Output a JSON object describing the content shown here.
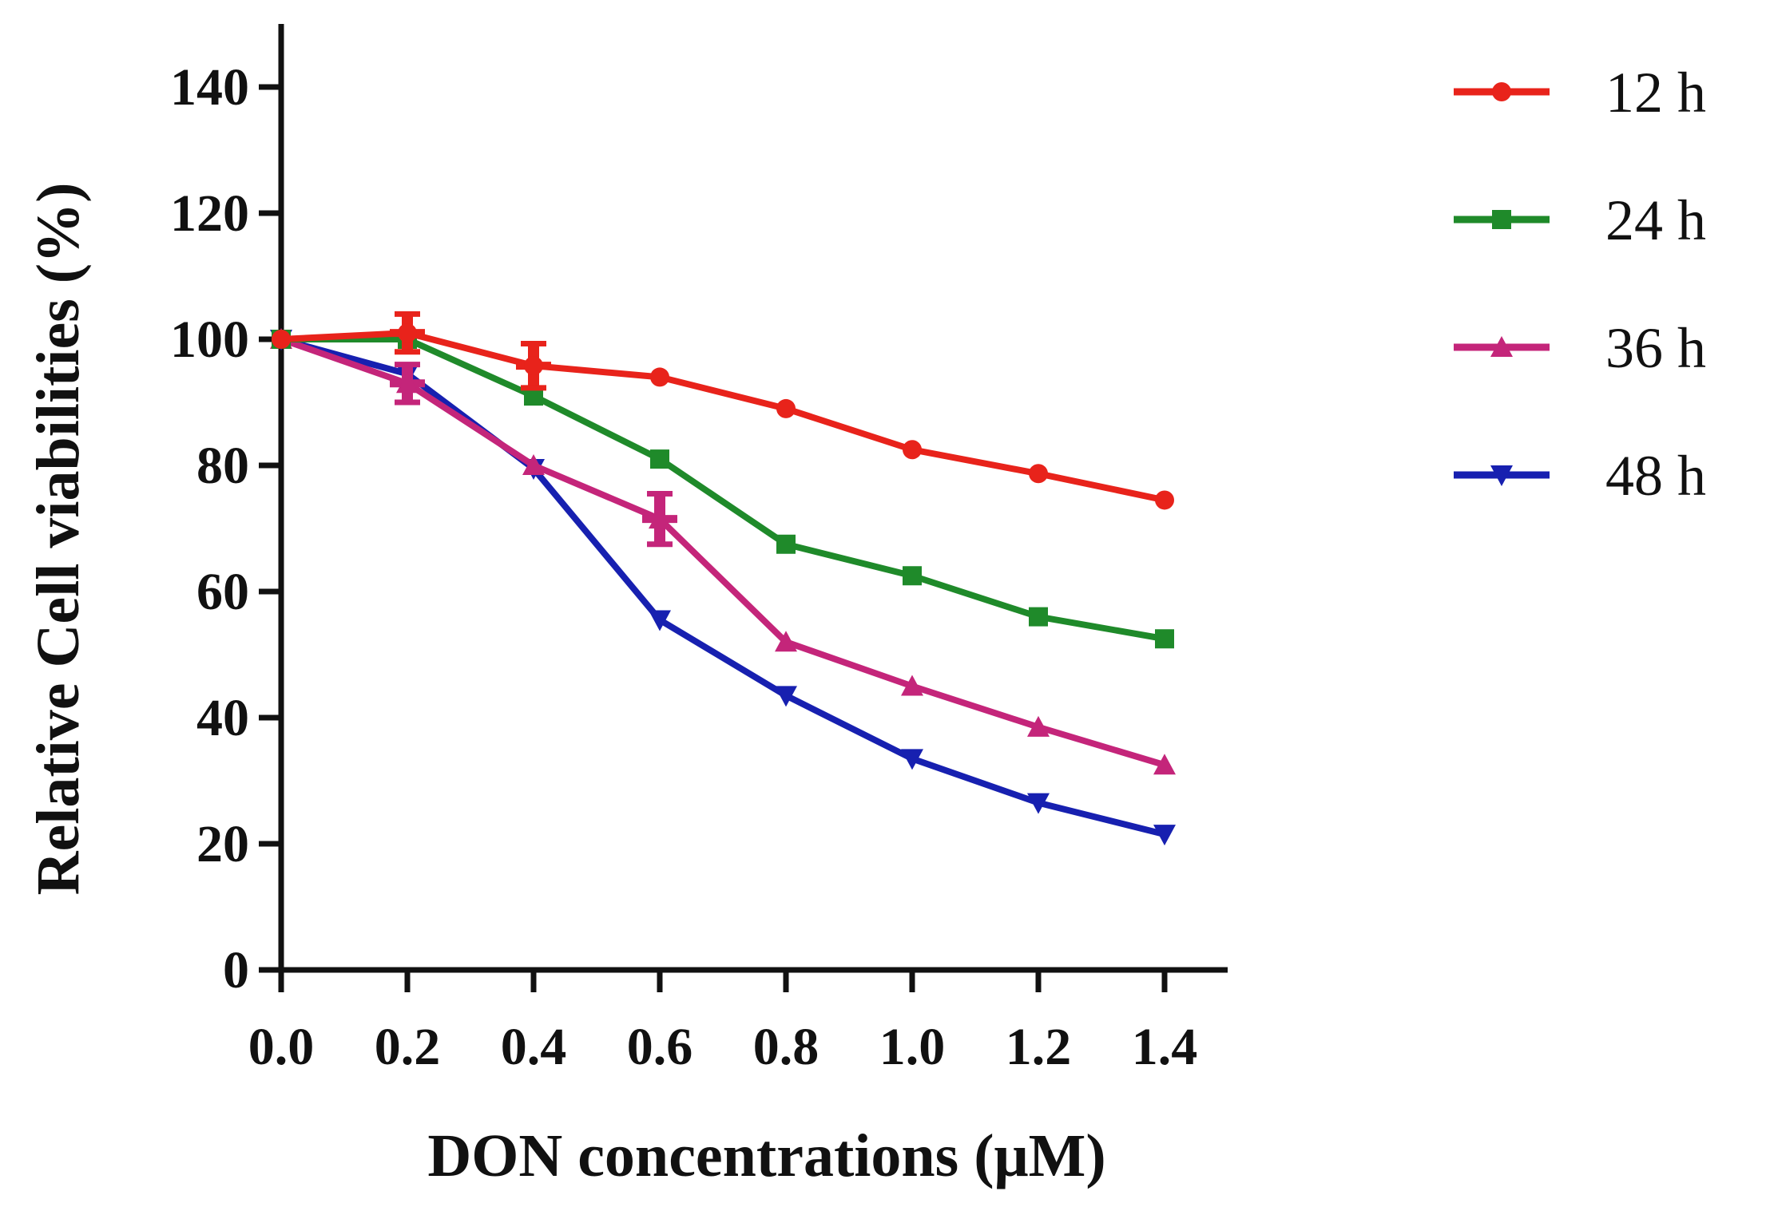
{
  "chart_data": {
    "type": "line",
    "title": "",
    "xlabel": "DON concentrations (μM)",
    "ylabel": "Relative Cell viabilities (%)",
    "x": [
      0.0,
      0.2,
      0.4,
      0.6,
      0.8,
      1.0,
      1.2,
      1.4
    ],
    "x_tick_labels": [
      "0.0",
      "0.2",
      "0.4",
      "0.6",
      "0.8",
      "1.0",
      "1.2",
      "1.4"
    ],
    "y_ticks": [
      0,
      20,
      40,
      60,
      80,
      100,
      120,
      140
    ],
    "xlim": [
      0.0,
      1.5
    ],
    "ylim": [
      0,
      150
    ],
    "grid": false,
    "legend_position": "top-right outside",
    "series": [
      {
        "name": "12 h",
        "color": "#e8231b",
        "marker": "circle",
        "values": [
          100,
          101,
          95.8,
          94,
          89,
          82.5,
          78.7,
          74.5
        ],
        "errors": [
          0,
          3,
          3.5,
          0,
          0,
          0,
          0,
          0
        ]
      },
      {
        "name": "24 h",
        "color": "#1f8a2a",
        "marker": "square",
        "values": [
          100,
          100,
          91,
          81,
          67.5,
          62.5,
          56,
          52.5
        ],
        "errors": [
          0,
          0,
          0,
          0,
          0,
          0,
          0,
          0
        ]
      },
      {
        "name": "36 h",
        "color": "#c4257a",
        "marker": "triangle-up",
        "values": [
          100,
          93,
          80,
          71.5,
          52,
          45,
          38.5,
          32.5
        ],
        "errors": [
          0,
          3,
          0,
          4,
          0,
          0,
          0,
          0
        ]
      },
      {
        "name": "48 h",
        "color": "#1720b0",
        "marker": "triangle-down",
        "values": [
          100,
          94.5,
          79.5,
          55.5,
          43.5,
          33.5,
          26.5,
          21.5
        ],
        "errors": [
          0,
          0,
          0,
          0,
          0,
          0,
          0,
          0
        ]
      }
    ]
  }
}
